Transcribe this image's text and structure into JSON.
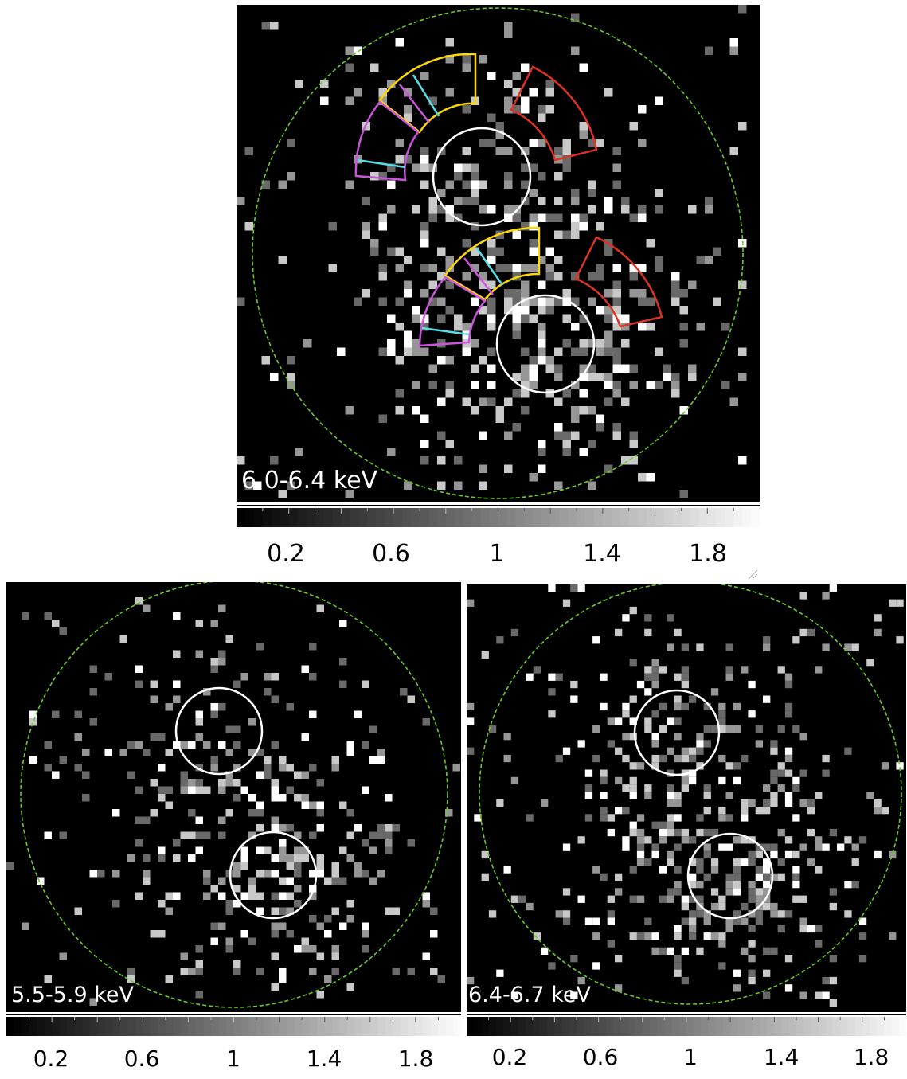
{
  "panels": {
    "top": {
      "band_label": "6.0-6.4 keV",
      "seed": 11,
      "density": 1.0
    },
    "left": {
      "band_label": "5.5-5.9 keV",
      "seed": 29,
      "density": 0.75
    },
    "right": {
      "band_label": "6.4-6.7 keV",
      "seed": 47,
      "density": 0.85
    }
  },
  "colorbar": {
    "tick_labels": [
      "0.2",
      "0.6",
      "1",
      "1.4",
      "1.8"
    ],
    "range": [
      0,
      2
    ]
  },
  "colors": {
    "background": "#000000",
    "outer_region": "#66cc22",
    "source_circle": "#ffffff",
    "sector_yellow": "#ffd700",
    "sector_magenta": "#cc55dd",
    "sector_red": "#dd3322",
    "sector_divider_cyan": "#55e0e8"
  }
}
